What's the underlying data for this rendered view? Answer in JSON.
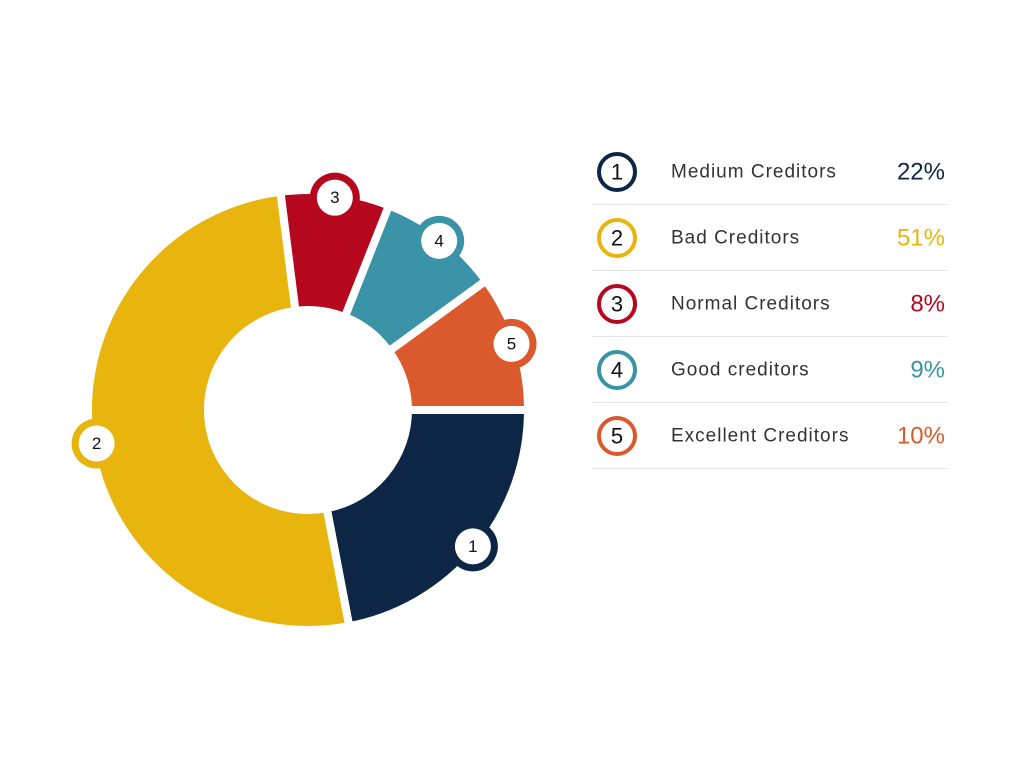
{
  "chart_data": {
    "type": "donut",
    "categories": [
      "Medium Creditors",
      "Bad Creditors",
      "Normal Creditors",
      "Good creditors",
      "Excellent Creditors"
    ],
    "badges": [
      "1",
      "2",
      "3",
      "4",
      "5"
    ],
    "values": [
      22,
      51,
      8,
      9,
      10
    ],
    "value_labels": [
      "22%",
      "51%",
      "8%",
      "9%",
      "10%"
    ],
    "colors": [
      "#0d2646",
      "#e8b50f",
      "#b5081f",
      "#3b93a8",
      "#db5a2d"
    ]
  }
}
